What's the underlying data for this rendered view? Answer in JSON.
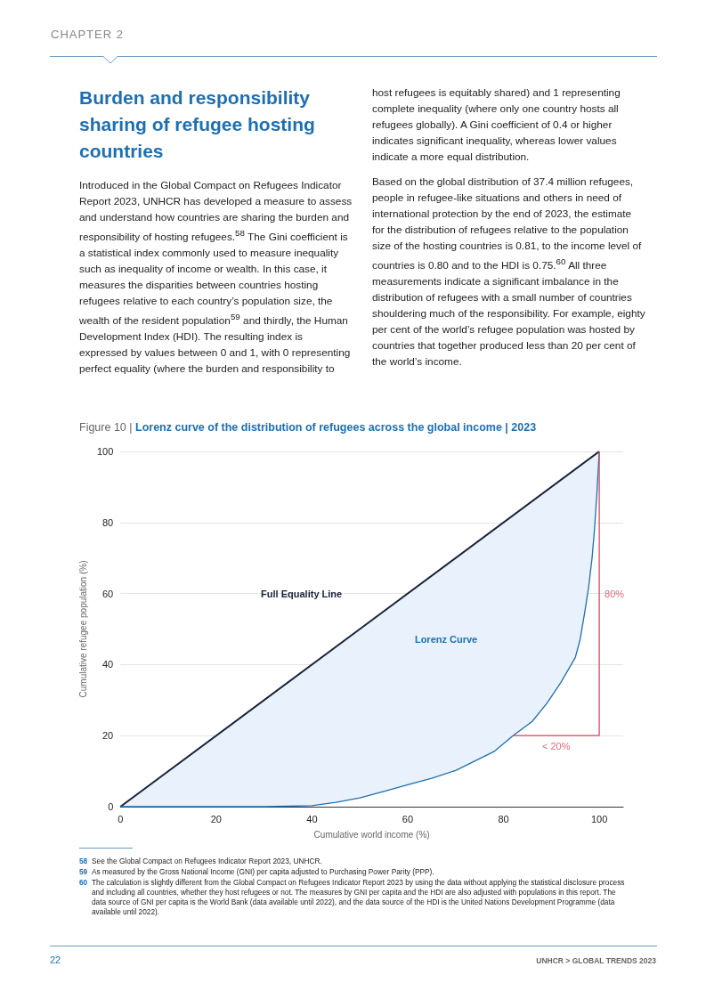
{
  "chart_data": {
    "type": "line",
    "title": "Figure 10 | Lorenz curve of the distribution of refugees across the global income | 2023",
    "xlabel": "Cumulative world income (%)",
    "ylabel": "Cumulative refugee population (%)",
    "xlim": [
      0,
      105
    ],
    "xticks": [
      0,
      20,
      40,
      60,
      80,
      100
    ],
    "ylim": [
      0,
      100
    ],
    "yticks": [
      0,
      20,
      40,
      60,
      80,
      100
    ],
    "grid": "y",
    "legend": false,
    "marker": "none",
    "line_style": "solid",
    "series": [
      {
        "name": "Full Equality Line",
        "color": "#1a2238",
        "x": [
          0,
          50,
          100
        ],
        "values": [
          0,
          50,
          100
        ]
      },
      {
        "name": "Lorenz Curve",
        "color": "#1f6fae",
        "x": [
          0,
          30,
          40,
          45,
          50,
          55,
          60,
          65,
          70,
          75,
          78,
          82,
          86,
          89,
          92,
          95,
          96,
          97,
          97.8,
          98.5,
          99,
          99.5,
          100
        ],
        "values": [
          0,
          0,
          0.3,
          1.2,
          2.5,
          4.3,
          6.2,
          8,
          10.2,
          13.5,
          15.5,
          20,
          24,
          29,
          35,
          42,
          47,
          55,
          62,
          70,
          78,
          88,
          100
        ],
        "lower": [
          0,
          0,
          0.3,
          1.2,
          2.5,
          4.3,
          6.2,
          8,
          10.2,
          13.5,
          15.5,
          20,
          24,
          29,
          35,
          42,
          47,
          55,
          62,
          70,
          78,
          88,
          100
        ],
        "upper": [
          0,
          30,
          40,
          45,
          50,
          55,
          60,
          65,
          70,
          75,
          78,
          82,
          86,
          89,
          92,
          95,
          96,
          97,
          97.8,
          98.5,
          99,
          99.5,
          100
        ]
      },
      {
        "color": "#e0465e",
        "x": [
          82,
          100,
          100
        ],
        "values": [
          20,
          20,
          100
        ]
      }
    ],
    "annotations": [
      {
        "text": "80%",
        "x": 100,
        "y": 60
      },
      {
        "text": "< 20%",
        "x": 91,
        "y": 20
      },
      "CHAPTER 2",
      "Burden and responsibility sharing of refugee hosting countries",
      "Introduced in the Global Compact on Refugees Indicator Report 2023, UNHCR has developed a measure to assess and understand how countries are sharing the burden and responsibility of hosting refugees.$^{58}$ The Gini coefficient is a statistical index commonly used to measure inequality such as inequality of income or wealth. In this case, it measures the disparities between countries hosting refugees relative to each country’s population size, the wealth of the resident population$^{59}$ and thirdly, the Human Development Index (HDI). The resulting index is expressed by values between 0 and 1, with 0 representing perfect equality (where the burden and responsibility to host refugees is equitably shared) and 1 representing complete inequality (where only one country hosts all refugees globally). A Gini coefficient of 0.4 or higher indicates significant inequality, whereas lower values indicate a more equal distribution.",
      "Based on the global distribution of 37.4 million refugees, people in refugee-like situations and others in need of international protection by the end of 2023, the estimate for the distribution of refugees relative to the population size of the hosting countries is 0.81, to the income level of countries is 0.80 and to the HDI is 0.75.$^{60}$ All three measurements indicate a significant imbalance in the distribution of refugees with a small number of countries shouldering much of the responsibility. For example, eighty per cent of the world’s refugee population was hosted by countries that together produced less than 20 per cent of the world’s income.",
      "58 See the Global Compact on Refugees Indicator Report 2023, UNHCR.",
      "59 As measured by the Gross National Income (GNI) per capita adjusted to Purchasing Power Parity (PPP).",
      "60 The calculation is slightly different from the Global Compact on Refugees Indicator Report 2023 by using the data without applying the statistical disclosure process and including all countries, whether they host refugees or not. The measures by GNI per capita and the HDI are also adjusted with populations in this report. The data source of GNI per capita is the World Bank (data available until 2022), and the data source of the HDI is the United Nations Development Programme (data available until 2022).",
      "22",
      "UNHCR > GLOBAL TRENDS 2023"
    ]
  }
}
